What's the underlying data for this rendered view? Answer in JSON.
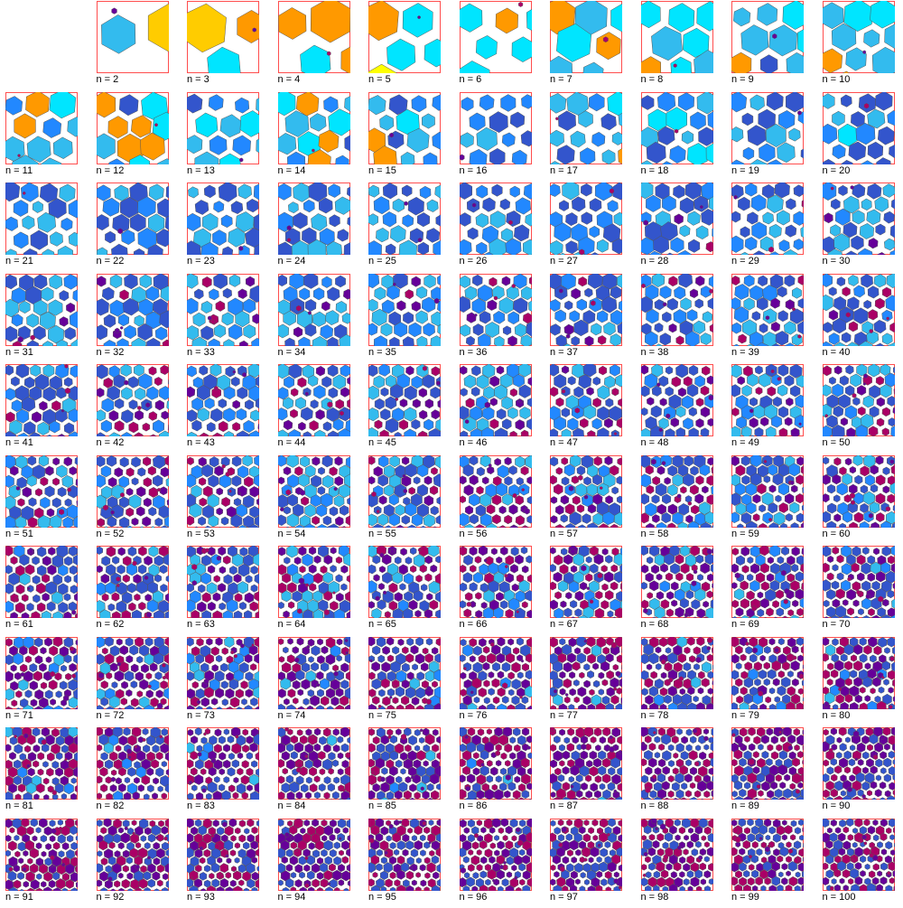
{
  "page": {
    "label_prefix": "n = "
  },
  "panels": [
    {
      "n": 2,
      "label": "n = 2"
    },
    {
      "n": 3,
      "label": "n = 3"
    },
    {
      "n": 4,
      "label": "n = 4"
    },
    {
      "n": 5,
      "label": "n = 5"
    },
    {
      "n": 6,
      "label": "n = 6"
    },
    {
      "n": 7,
      "label": "n = 7"
    },
    {
      "n": 8,
      "label": "n = 8"
    },
    {
      "n": 9,
      "label": "n = 9"
    },
    {
      "n": 10,
      "label": "n = 10"
    },
    {
      "n": 11,
      "label": "n = 11"
    },
    {
      "n": 12,
      "label": "n = 12"
    },
    {
      "n": 13,
      "label": "n = 13"
    },
    {
      "n": 14,
      "label": "n = 14"
    },
    {
      "n": 15,
      "label": "n = 15"
    },
    {
      "n": 16,
      "label": "n = 16"
    },
    {
      "n": 17,
      "label": "n = 17"
    },
    {
      "n": 18,
      "label": "n = 18"
    },
    {
      "n": 19,
      "label": "n = 19"
    },
    {
      "n": 20,
      "label": "n = 20"
    },
    {
      "n": 21,
      "label": "n = 21"
    },
    {
      "n": 22,
      "label": "n = 22"
    },
    {
      "n": 23,
      "label": "n = 23"
    },
    {
      "n": 24,
      "label": "n = 24"
    },
    {
      "n": 25,
      "label": "n = 25"
    },
    {
      "n": 26,
      "label": "n = 26"
    },
    {
      "n": 27,
      "label": "n = 27"
    },
    {
      "n": 28,
      "label": "n = 28"
    },
    {
      "n": 29,
      "label": "n = 29"
    },
    {
      "n": 30,
      "label": "n = 30"
    },
    {
      "n": 31,
      "label": "n = 31"
    },
    {
      "n": 32,
      "label": "n = 32"
    },
    {
      "n": 33,
      "label": "n = 33"
    },
    {
      "n": 34,
      "label": "n = 34"
    },
    {
      "n": 35,
      "label": "n = 35"
    },
    {
      "n": 36,
      "label": "n = 36"
    },
    {
      "n": 37,
      "label": "n = 37"
    },
    {
      "n": 38,
      "label": "n = 38"
    },
    {
      "n": 39,
      "label": "n = 39"
    },
    {
      "n": 40,
      "label": "n = 40"
    },
    {
      "n": 41,
      "label": "n = 41"
    },
    {
      "n": 42,
      "label": "n = 42"
    },
    {
      "n": 43,
      "label": "n = 43"
    },
    {
      "n": 44,
      "label": "n = 44"
    },
    {
      "n": 45,
      "label": "n = 45"
    },
    {
      "n": 46,
      "label": "n = 46"
    },
    {
      "n": 47,
      "label": "n = 47"
    },
    {
      "n": 48,
      "label": "n = 48"
    },
    {
      "n": 49,
      "label": "n = 49"
    },
    {
      "n": 50,
      "label": "n = 50"
    },
    {
      "n": 51,
      "label": "n = 51"
    },
    {
      "n": 52,
      "label": "n = 52"
    },
    {
      "n": 53,
      "label": "n = 53"
    },
    {
      "n": 54,
      "label": "n = 54"
    },
    {
      "n": 55,
      "label": "n = 55"
    },
    {
      "n": 56,
      "label": "n = 56"
    },
    {
      "n": 57,
      "label": "n = 57"
    },
    {
      "n": 58,
      "label": "n = 58"
    },
    {
      "n": 59,
      "label": "n = 59"
    },
    {
      "n": 60,
      "label": "n = 60"
    },
    {
      "n": 61,
      "label": "n = 61"
    },
    {
      "n": 62,
      "label": "n = 62"
    },
    {
      "n": 63,
      "label": "n = 63"
    },
    {
      "n": 64,
      "label": "n = 64"
    },
    {
      "n": 65,
      "label": "n = 65"
    },
    {
      "n": 66,
      "label": "n = 66"
    },
    {
      "n": 67,
      "label": "n = 67"
    },
    {
      "n": 68,
      "label": "n = 68"
    },
    {
      "n": 69,
      "label": "n = 69"
    },
    {
      "n": 70,
      "label": "n = 70"
    },
    {
      "n": 71,
      "label": "n = 71"
    },
    {
      "n": 72,
      "label": "n = 72"
    },
    {
      "n": 73,
      "label": "n = 73"
    },
    {
      "n": 74,
      "label": "n = 74"
    },
    {
      "n": 75,
      "label": "n = 75"
    },
    {
      "n": 76,
      "label": "n = 76"
    },
    {
      "n": 77,
      "label": "n = 77"
    },
    {
      "n": 78,
      "label": "n = 78"
    },
    {
      "n": 79,
      "label": "n = 79"
    },
    {
      "n": 80,
      "label": "n = 80"
    },
    {
      "n": 81,
      "label": "n = 81"
    },
    {
      "n": 82,
      "label": "n = 82"
    },
    {
      "n": 83,
      "label": "n = 83"
    },
    {
      "n": 84,
      "label": "n = 84"
    },
    {
      "n": 85,
      "label": "n = 85"
    },
    {
      "n": 86,
      "label": "n = 86"
    },
    {
      "n": 87,
      "label": "n = 87"
    },
    {
      "n": 88,
      "label": "n = 88"
    },
    {
      "n": 89,
      "label": "n = 89"
    },
    {
      "n": 90,
      "label": "n = 90"
    },
    {
      "n": 91,
      "label": "n = 91"
    },
    {
      "n": 92,
      "label": "n = 92"
    },
    {
      "n": 93,
      "label": "n = 93"
    },
    {
      "n": 94,
      "label": "n = 94"
    },
    {
      "n": 95,
      "label": "n = 95"
    },
    {
      "n": 96,
      "label": "n = 96"
    },
    {
      "n": 97,
      "label": "n = 97"
    },
    {
      "n": 98,
      "label": "n = 98"
    },
    {
      "n": 99,
      "label": "n = 99"
    },
    {
      "n": 100,
      "label": "n = 100"
    }
  ],
  "colors": {
    "frame": "#ff4d4d",
    "hex_outline": "#555555",
    "palette": [
      "#ffff00",
      "#ffcc00",
      "#ff9900",
      "#00e5ff",
      "#33bbee",
      "#2288ff",
      "#3355cc",
      "#660099",
      "#aa0066"
    ]
  },
  "icons": {
    "hexagon": "hexagon-shape"
  }
}
